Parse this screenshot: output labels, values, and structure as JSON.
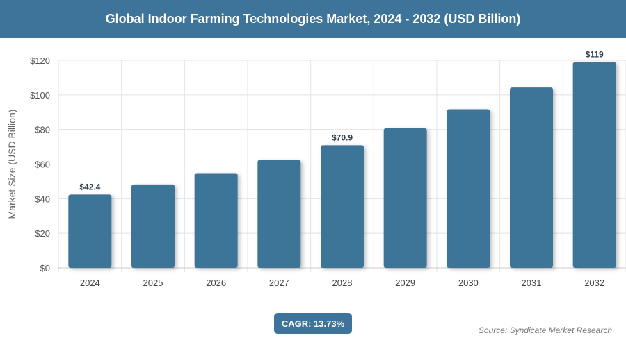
{
  "chart_data": {
    "type": "bar",
    "title": "Global Indoor Farming Technologies Market, 2024 - 2032 (USD Billion)",
    "xlabel": "",
    "ylabel": "Market Size (USD Billion)",
    "categories": [
      "2024",
      "2025",
      "2026",
      "2027",
      "2028",
      "2029",
      "2030",
      "2031",
      "2032"
    ],
    "values": [
      42.4,
      48.2,
      54.8,
      62.4,
      70.9,
      80.7,
      91.7,
      104.3,
      119
    ],
    "data_labels": {
      "0": "$42.4",
      "4": "$70.9",
      "8": "$119"
    },
    "ylim": [
      0,
      120
    ],
    "yticks": [
      0,
      20,
      40,
      60,
      80,
      100,
      120
    ],
    "ytick_labels": [
      "$0",
      "$20",
      "$40",
      "$60",
      "$80",
      "$100",
      "$120"
    ],
    "grid": true,
    "bar_color": "#3e7499"
  },
  "cagr_label": "CAGR: 13.73%",
  "source": "Source: Syndicate Market Research"
}
